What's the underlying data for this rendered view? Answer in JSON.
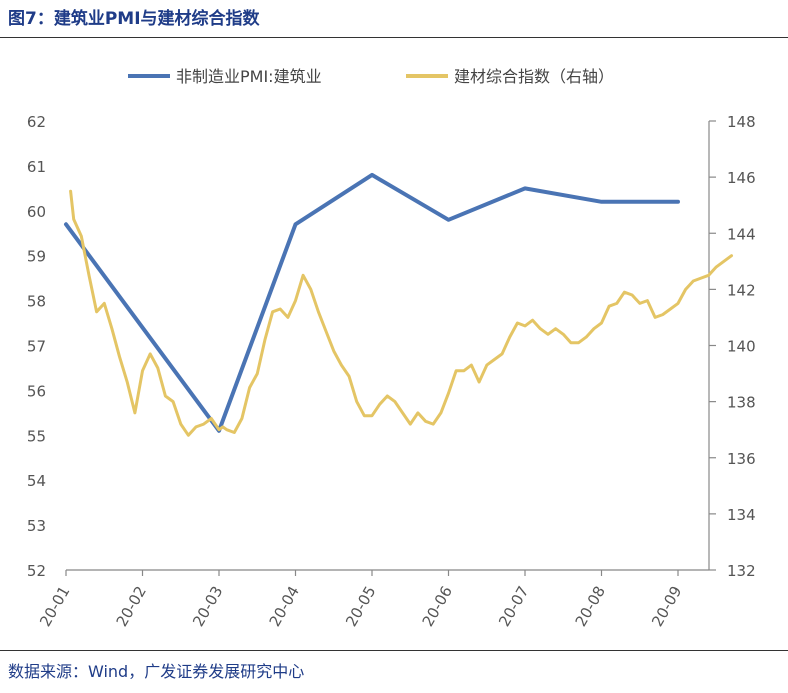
{
  "header": {
    "title": "图7：建筑业PMI与建材综合指数"
  },
  "footer": {
    "source": "数据来源：Wind，广发证券发展研究中心"
  },
  "colors": {
    "pmi": "#4a74b4",
    "index": "#e4c565",
    "axis": "#888888"
  },
  "chart_data": {
    "type": "line",
    "title": "",
    "x_ticks": [
      "20-01",
      "20-02",
      "20-03",
      "20-04",
      "20-05",
      "20-06",
      "20-07",
      "20-08",
      "20-09"
    ],
    "left_axis": {
      "ylim": [
        52,
        62
      ],
      "ticks": [
        52,
        53,
        54,
        55,
        56,
        57,
        58,
        59,
        60,
        61,
        62
      ]
    },
    "right_axis": {
      "ylim": [
        132,
        148
      ],
      "ticks": [
        132,
        134,
        136,
        138,
        140,
        142,
        144,
        146,
        148
      ]
    },
    "legend_position": "top",
    "series": [
      {
        "name": "非制造业PMI:建筑业",
        "axis": "left",
        "x": [
          0,
          2,
          3,
          4,
          5,
          6,
          7,
          8
        ],
        "values": [
          59.7,
          55.1,
          59.7,
          60.8,
          59.8,
          60.5,
          60.2,
          60.2
        ]
      },
      {
        "name": "建材综合指数（右轴）",
        "axis": "right",
        "x": [
          0.06,
          0.1,
          0.2,
          0.3,
          0.4,
          0.5,
          0.6,
          0.7,
          0.8,
          0.9,
          1.0,
          1.1,
          1.2,
          1.3,
          1.4,
          1.5,
          1.6,
          1.7,
          1.8,
          1.9,
          2.0,
          2.05,
          2.1,
          2.2,
          2.3,
          2.4,
          2.5,
          2.6,
          2.7,
          2.8,
          2.9,
          3.0,
          3.1,
          3.2,
          3.3,
          3.4,
          3.5,
          3.6,
          3.7,
          3.8,
          3.9,
          4.0,
          4.1,
          4.2,
          4.3,
          4.4,
          4.5,
          4.6,
          4.7,
          4.8,
          4.9,
          5.0,
          5.1,
          5.2,
          5.3,
          5.4,
          5.5,
          5.6,
          5.7,
          5.8,
          5.9,
          6.0,
          6.1,
          6.2,
          6.3,
          6.4,
          6.5,
          6.6,
          6.7,
          6.8,
          6.9,
          7.0,
          7.1,
          7.2,
          7.3,
          7.4,
          7.5,
          7.6,
          7.7,
          7.8,
          7.9,
          8.0,
          8.1,
          8.2,
          8.3,
          8.4,
          8.5,
          8.6,
          8.7
        ],
        "values": [
          145.5,
          144.5,
          143.9,
          142.5,
          141.2,
          141.5,
          140.6,
          139.6,
          138.7,
          137.6,
          139.1,
          139.7,
          139.2,
          138.2,
          138.0,
          137.2,
          136.8,
          137.1,
          137.2,
          137.4,
          137.0,
          137.1,
          137.0,
          136.9,
          137.4,
          138.5,
          139.0,
          140.2,
          141.2,
          141.3,
          141.0,
          141.6,
          142.5,
          142.0,
          141.2,
          140.5,
          139.8,
          139.3,
          138.9,
          138.0,
          137.5,
          137.5,
          137.9,
          138.2,
          138.0,
          137.6,
          137.2,
          137.6,
          137.3,
          137.2,
          137.6,
          138.3,
          139.1,
          139.1,
          139.3,
          138.7,
          139.3,
          139.5,
          139.7,
          140.3,
          140.8,
          140.7,
          140.9,
          140.6,
          140.4,
          140.6,
          140.4,
          140.1,
          140.1,
          140.3,
          140.6,
          140.8,
          141.4,
          141.5,
          141.9,
          141.8,
          141.5,
          141.6,
          141.0,
          141.1,
          141.3,
          141.5,
          142.0,
          142.3,
          142.4,
          142.5,
          142.8,
          143.0,
          143.2
        ]
      }
    ]
  }
}
